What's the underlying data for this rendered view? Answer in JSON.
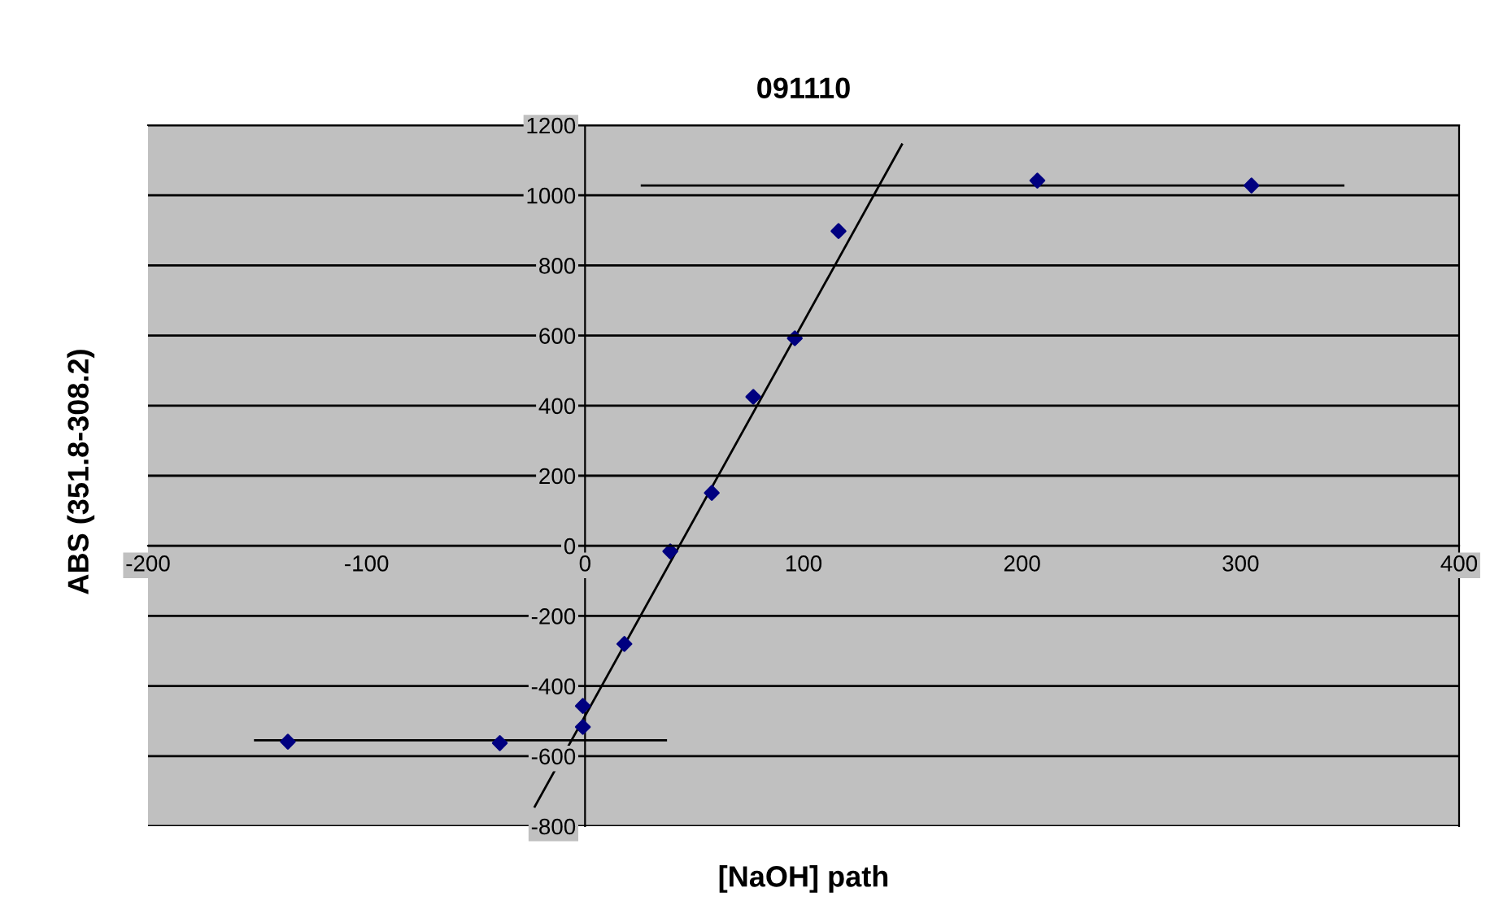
{
  "chart_data": {
    "type": "scatter",
    "title": "091110",
    "xlabel": "[NaOH] path",
    "ylabel": "ABS (351.8-308.2)",
    "xlim": [
      -200,
      400
    ],
    "xticks": [
      -200,
      -100,
      0,
      100,
      200,
      300,
      400
    ],
    "ylim": [
      -800,
      1200
    ],
    "yticks": [
      -800,
      -600,
      -400,
      -200,
      0,
      200,
      400,
      600,
      800,
      1000,
      1200
    ],
    "grid": "y",
    "marker": "diamond",
    "legend": false,
    "series": [
      {
        "color": "#000080",
        "x": [
          -136,
          -39,
          -1,
          -1,
          18,
          39,
          58,
          77,
          96,
          116,
          207,
          305
        ],
        "values": [
          -559,
          -563,
          -517,
          -457,
          -280,
          -16,
          151,
          425,
          592,
          898,
          1042,
          1028
        ]
      },
      {
        "type": "line",
        "color": "#000000",
        "marker": "none",
        "x": [
          -23,
          145
        ],
        "values": [
          -744,
          1145
        ]
      },
      {
        "type": "line",
        "color": "#000000",
        "marker": "none",
        "x": [
          26,
          347
        ],
        "values": [
          1028,
          1028
        ]
      },
      {
        "type": "line",
        "color": "#000000",
        "marker": "none",
        "x": [
          -151,
          37
        ],
        "values": [
          -555,
          -555
        ]
      }
    ]
  }
}
